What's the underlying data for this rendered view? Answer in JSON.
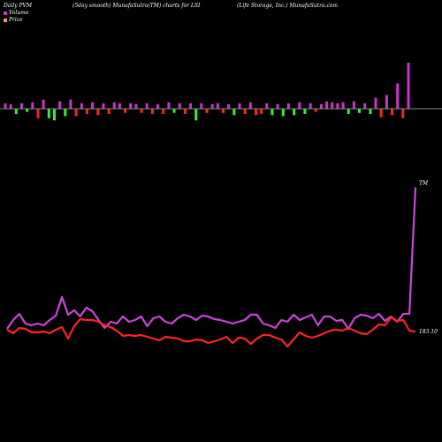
{
  "header": {
    "left": "Daily PVM",
    "middle": "(5day smooth) MunafaSutra(TM) charts for LSI",
    "right": "(Life  Storage, Inc.) MunafaSutra.com"
  },
  "legend": [
    {
      "label": "Volume",
      "color": "#cc33cc"
    },
    {
      "label": "Price",
      "color": "#ff9966"
    }
  ],
  "colors": {
    "up_bar": "#cc33cc",
    "down_bar_green": "#33ee33",
    "down_bar_red": "#ff2222",
    "tm_line": "#cc44dd",
    "price_line": "#ff2222",
    "baseline": "#888888"
  },
  "chart_data": {
    "type": "line",
    "title": "(5day smooth) MunafaSutra(TM) charts for LSI",
    "annotations": [
      "TM",
      "183.10"
    ],
    "volume_bars": [
      {
        "v": 0.12,
        "c": "up"
      },
      {
        "v": 0.1,
        "c": "up"
      },
      {
        "v": -0.1,
        "c": "green"
      },
      {
        "v": 0.12,
        "c": "up"
      },
      {
        "v": -0.06,
        "c": "green"
      },
      {
        "v": 0.14,
        "c": "up"
      },
      {
        "v": -0.18,
        "c": "red"
      },
      {
        "v": 0.2,
        "c": "up"
      },
      {
        "v": -0.18,
        "c": "green"
      },
      {
        "v": -0.22,
        "c": "green"
      },
      {
        "v": 0.16,
        "c": "up"
      },
      {
        "v": -0.14,
        "c": "green"
      },
      {
        "v": 0.2,
        "c": "up"
      },
      {
        "v": -0.14,
        "c": "red"
      },
      {
        "v": 0.12,
        "c": "up"
      },
      {
        "v": -0.1,
        "c": "red"
      },
      {
        "v": 0.14,
        "c": "up"
      },
      {
        "v": -0.12,
        "c": "red"
      },
      {
        "v": 0.12,
        "c": "up"
      },
      {
        "v": -0.1,
        "c": "red"
      },
      {
        "v": 0.14,
        "c": "up"
      },
      {
        "v": 0.12,
        "c": "up"
      },
      {
        "v": -0.08,
        "c": "red"
      },
      {
        "v": 0.12,
        "c": "up"
      },
      {
        "v": 0.1,
        "c": "up"
      },
      {
        "v": -0.08,
        "c": "red"
      },
      {
        "v": 0.12,
        "c": "up"
      },
      {
        "v": -0.1,
        "c": "red"
      },
      {
        "v": 0.1,
        "c": "up"
      },
      {
        "v": -0.1,
        "c": "red"
      },
      {
        "v": 0.14,
        "c": "up"
      },
      {
        "v": -0.08,
        "c": "green"
      },
      {
        "v": 0.12,
        "c": "up"
      },
      {
        "v": -0.1,
        "c": "red"
      },
      {
        "v": 0.12,
        "c": "up"
      },
      {
        "v": -0.22,
        "c": "green"
      },
      {
        "v": 0.12,
        "c": "up"
      },
      {
        "v": -0.08,
        "c": "red"
      },
      {
        "v": 0.1,
        "c": "up"
      },
      {
        "v": 0.12,
        "c": "up"
      },
      {
        "v": -0.08,
        "c": "red"
      },
      {
        "v": 0.1,
        "c": "up"
      },
      {
        "v": -0.12,
        "c": "green"
      },
      {
        "v": 0.12,
        "c": "up"
      },
      {
        "v": -0.1,
        "c": "red"
      },
      {
        "v": 0.14,
        "c": "up"
      },
      {
        "v": -0.12,
        "c": "red"
      },
      {
        "v": -0.1,
        "c": "red"
      },
      {
        "v": 0.12,
        "c": "up"
      },
      {
        "v": -0.12,
        "c": "green"
      },
      {
        "v": 0.1,
        "c": "up"
      },
      {
        "v": -0.14,
        "c": "green"
      },
      {
        "v": 0.12,
        "c": "up"
      },
      {
        "v": -0.12,
        "c": "green"
      },
      {
        "v": 0.14,
        "c": "up"
      },
      {
        "v": -0.1,
        "c": "green"
      },
      {
        "v": 0.12,
        "c": "up"
      },
      {
        "v": -0.06,
        "c": "red"
      },
      {
        "v": 0.1,
        "c": "up"
      },
      {
        "v": 0.16,
        "c": "up"
      },
      {
        "v": 0.14,
        "c": "up"
      },
      {
        "v": 0.12,
        "c": "up"
      },
      {
        "v": 0.14,
        "c": "up"
      },
      {
        "v": -0.1,
        "c": "green"
      },
      {
        "v": 0.16,
        "c": "up"
      },
      {
        "v": -0.08,
        "c": "green"
      },
      {
        "v": 0.12,
        "c": "up"
      },
      {
        "v": -0.1,
        "c": "green"
      },
      {
        "v": 0.24,
        "c": "up"
      },
      {
        "v": -0.16,
        "c": "red"
      },
      {
        "v": 0.3,
        "c": "up"
      },
      {
        "v": -0.12,
        "c": "red"
      },
      {
        "v": 0.55,
        "c": "up"
      },
      {
        "v": -0.18,
        "c": "red"
      },
      {
        "v": 1.0,
        "c": "up"
      }
    ],
    "series": [
      {
        "color": "#cc44dd",
        "values": [
          372,
          362,
          355,
          366,
          368,
          366,
          368,
          362,
          357,
          336,
          356,
          351,
          358,
          348,
          352,
          362,
          371,
          364,
          366,
          358,
          364,
          362,
          358,
          369,
          360,
          358,
          364,
          366,
          360,
          356,
          358,
          362,
          357,
          358,
          361,
          362,
          364,
          366,
          364,
          362,
          356,
          356,
          366,
          368,
          371,
          362,
          364,
          356,
          362,
          359,
          356,
          368,
          358,
          358,
          363,
          362,
          372,
          360,
          356,
          357,
          360,
          355,
          363,
          358,
          364,
          355,
          355,
          212
        ]
      },
      {
        "color": "#ff2222",
        "values": [
          373,
          377,
          371,
          372,
          376,
          376,
          375,
          377,
          373,
          370,
          383,
          369,
          361,
          362,
          362,
          364,
          368,
          370,
          374,
          380,
          379,
          380,
          379,
          381,
          383,
          385,
          381,
          382,
          383,
          386,
          386,
          384,
          385,
          388,
          386,
          384,
          381,
          388,
          382,
          383,
          389,
          383,
          379,
          379,
          382,
          384,
          392,
          384,
          376,
          380,
          382,
          380,
          377,
          374,
          373,
          374,
          371,
          374,
          377,
          378,
          373,
          367,
          368,
          359,
          363,
          362,
          374,
          375
        ]
      }
    ]
  }
}
